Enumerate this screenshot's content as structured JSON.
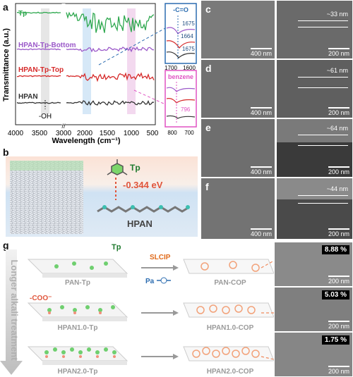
{
  "panel_labels": {
    "a": "a",
    "b": "b",
    "c": "c",
    "d": "d",
    "e": "e",
    "f": "f",
    "g": "g"
  },
  "ftir": {
    "ylabel": "Transmittance (a.u.)",
    "xlabel": "Wavelength (cm⁻¹)",
    "xticks": [
      "4000",
      "3500",
      "3000",
      "2000",
      "1500",
      "1000",
      "500"
    ],
    "series": [
      {
        "name": "Tp",
        "color": "#2fa84f"
      },
      {
        "name": "HPAN-Tp-Bottom",
        "color": "#9b59c9"
      },
      {
        "name": "HPAN-Tp-Top",
        "color": "#d62a2a"
      },
      {
        "name": "HPAN",
        "color": "#333333"
      }
    ],
    "oh_label": "-OH",
    "inset_co": {
      "title": "-C=O",
      "peaks": [
        "1675",
        "1664",
        "1675"
      ],
      "xticks": [
        "1700",
        "1600"
      ]
    },
    "inset_benzene": {
      "title": "benzene",
      "peak": "796",
      "xticks": [
        "800",
        "700"
      ]
    }
  },
  "panel_b": {
    "molecule": "Tp",
    "energy": "-0.344 eV",
    "substrate": "HPAN"
  },
  "sem_cf": [
    {
      "label": "c",
      "thickness": "~33 nm",
      "scale_left": "400 nm",
      "scale_right": "200 nm"
    },
    {
      "label": "d",
      "thickness": "~61 nm",
      "scale_left": "400 nm",
      "scale_right": "200 nm"
    },
    {
      "label": "e",
      "thickness": "~64 nm",
      "scale_left": "400 nm",
      "scale_right": "200 nm"
    },
    {
      "label": "f",
      "thickness": "~44 nm",
      "scale_left": "400 nm",
      "scale_right": "200 nm"
    }
  ],
  "panel_g": {
    "side_label": "Longer alkali treatment",
    "tp": "Tp",
    "slcip": "SLCIP",
    "pa": "Pa",
    "coo": "-COO⁻",
    "rows": [
      {
        "left": "PAN-Tp",
        "right": "PAN-COP",
        "porosity": "8.88 %",
        "scale": "200 nm"
      },
      {
        "left": "HPAN1.0-Tp",
        "right": "HPAN1.0-COP",
        "porosity": "5.03 %",
        "scale": "200 nm"
      },
      {
        "left": "HPAN2.0-Tp",
        "right": "HPAN2.0-COP",
        "porosity": "1.75 %",
        "scale": "200 nm"
      }
    ]
  }
}
